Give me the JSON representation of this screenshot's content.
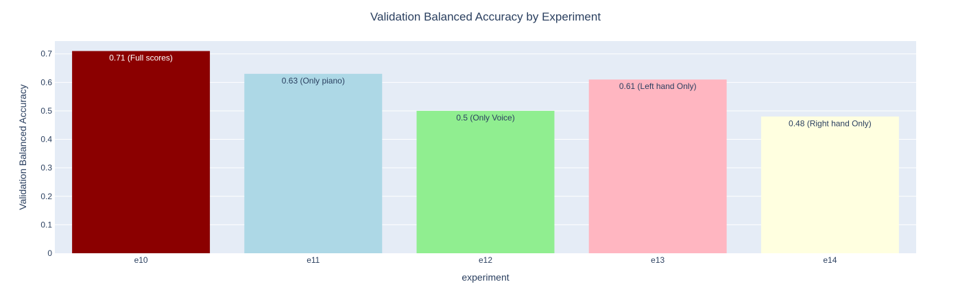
{
  "chart_data": {
    "type": "bar",
    "title": "Validation Balanced Accuracy by Experiment",
    "xlabel": "experiment",
    "ylabel": "Validation Balanced Accuracy",
    "categories": [
      "e10",
      "e11",
      "e12",
      "e13",
      "e14"
    ],
    "values": [
      0.71,
      0.63,
      0.5,
      0.61,
      0.48
    ],
    "labels": [
      "0.71 (Full scores)",
      "0.63 (Only piano)",
      "0.5 (Only Voice)",
      "0.61 (Left hand Only)",
      "0.48 (Right hand Only)"
    ],
    "colors": [
      "#8b0000",
      "#add8e6",
      "#90ee90",
      "#ffb6c1",
      "#ffffe0"
    ],
    "label_colors": [
      "#ffffff",
      "#2a3f5f",
      "#2a3f5f",
      "#2a3f5f",
      "#2a3f5f"
    ],
    "ylim": [
      0,
      0.745
    ],
    "yticks": [
      0,
      0.1,
      0.2,
      0.3,
      0.4,
      0.5,
      0.6,
      0.7
    ],
    "ytick_labels": [
      "0",
      "0.1",
      "0.2",
      "0.3",
      "0.4",
      "0.5",
      "0.6",
      "0.7"
    ],
    "grid": true,
    "legend": "none",
    "plot_background": "#e5ecf6"
  }
}
